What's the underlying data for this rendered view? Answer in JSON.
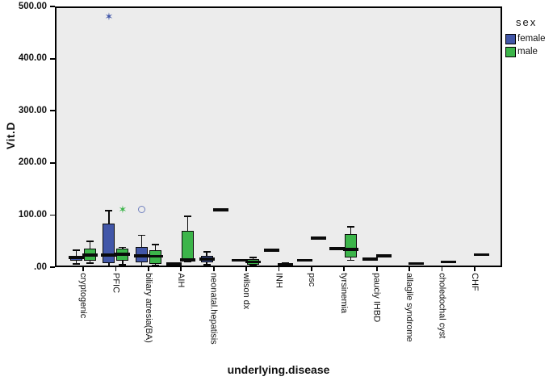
{
  "figure": {
    "background": "#FFFFFF",
    "plot_background": "#ECECEC",
    "frame_color": "#000000"
  },
  "legend": {
    "title": "sex",
    "entries": [
      {
        "label": "female",
        "color": "#4156A8"
      },
      {
        "label": "male",
        "color": "#3CB54A"
      }
    ]
  },
  "chart_data": {
    "type": "boxplot",
    "orientation": "vertical",
    "grouped_by": "sex",
    "xlabel": "underlying.disease",
    "ylabel": "Vit.D",
    "ylim": [
      0,
      500
    ],
    "grid": false,
    "legend_position": "right",
    "ytick_values": [
      0,
      100,
      200,
      300,
      400,
      500
    ],
    "ytick_labels": [
      ".00",
      "100.00",
      "200.00",
      "300.00",
      "400.00",
      "500.00"
    ],
    "categories": [
      "cryptogenic",
      "PFIC",
      "biliary atresia(BA)",
      "AIH",
      "neonatal.hepatisis",
      "wilson dx",
      "INH",
      "psc",
      "tyrsinemia",
      "pauciy IHBD",
      "allagile syndrome",
      "choledochal cyst",
      "CHF"
    ],
    "series": [
      {
        "name": "female",
        "color": "#4156A8",
        "boxes": [
          {
            "low": 6,
            "q1": 12,
            "median": 18,
            "q3": 22,
            "high": 33
          },
          {
            "low": 1,
            "q1": 7,
            "median": 23,
            "q3": 84,
            "high": 108
          },
          {
            "low": 2,
            "q1": 9,
            "median": 22,
            "q3": 38,
            "high": 61
          },
          {
            "low": 4,
            "q1": 5,
            "median": 6,
            "q3": 8,
            "high": 8
          },
          {
            "low": 5,
            "q1": 10,
            "median": 16,
            "q3": 22,
            "high": 30
          },
          {
            "low": 13,
            "q1": 13,
            "median": 13,
            "q3": 13,
            "high": 13
          },
          {
            "low": 33,
            "q1": 33,
            "median": 33,
            "q3": 33,
            "high": 33
          },
          {
            "low": 13,
            "q1": 13,
            "median": 13,
            "q3": 13,
            "high": 13
          },
          {
            "low": 35,
            "q1": 35,
            "median": 35,
            "q3": 35,
            "high": 35
          },
          {
            "low": 16,
            "q1": 16,
            "median": 16,
            "q3": 16,
            "high": 16
          },
          null,
          null,
          null
        ],
        "outliers": [
          {
            "category_index": 1,
            "value": 475,
            "marker": "star"
          },
          {
            "category_index": 2,
            "value": 110,
            "marker": "circle"
          }
        ]
      },
      {
        "name": "male",
        "color": "#3CB54A",
        "boxes": [
          {
            "low": 8,
            "q1": 12,
            "median": 23,
            "q3": 36,
            "high": 50
          },
          {
            "low": 5,
            "q1": 12,
            "median": 25,
            "q3": 35,
            "high": 38
          },
          {
            "low": 3,
            "q1": 6,
            "median": 21,
            "q3": 32,
            "high": 43
          },
          {
            "low": 11,
            "q1": 13,
            "median": 14,
            "q3": 70,
            "high": 98
          },
          {
            "low": 110,
            "q1": 110,
            "median": 110,
            "q3": 110,
            "high": 110
          },
          {
            "low": 3,
            "q1": 5,
            "median": 10,
            "q3": 15,
            "high": 19
          },
          {
            "low": 2,
            "q1": 2,
            "median": 5,
            "q3": 8,
            "high": 8
          },
          {
            "low": 56,
            "q1": 56,
            "median": 56,
            "q3": 56,
            "high": 56
          },
          {
            "low": 13,
            "q1": 19,
            "median": 34,
            "q3": 64,
            "high": 77
          },
          {
            "low": 22,
            "q1": 22,
            "median": 22,
            "q3": 22,
            "high": 22
          },
          {
            "low": 7,
            "q1": 7,
            "median": 7,
            "q3": 7,
            "high": 7
          },
          {
            "low": 10,
            "q1": 10,
            "median": 10,
            "q3": 10,
            "high": 10
          },
          {
            "low": 24,
            "q1": 24,
            "median": 24,
            "q3": 24,
            "high": 24
          }
        ],
        "outliers": [
          {
            "category_index": 1,
            "value": 106,
            "marker": "star"
          }
        ]
      }
    ]
  }
}
